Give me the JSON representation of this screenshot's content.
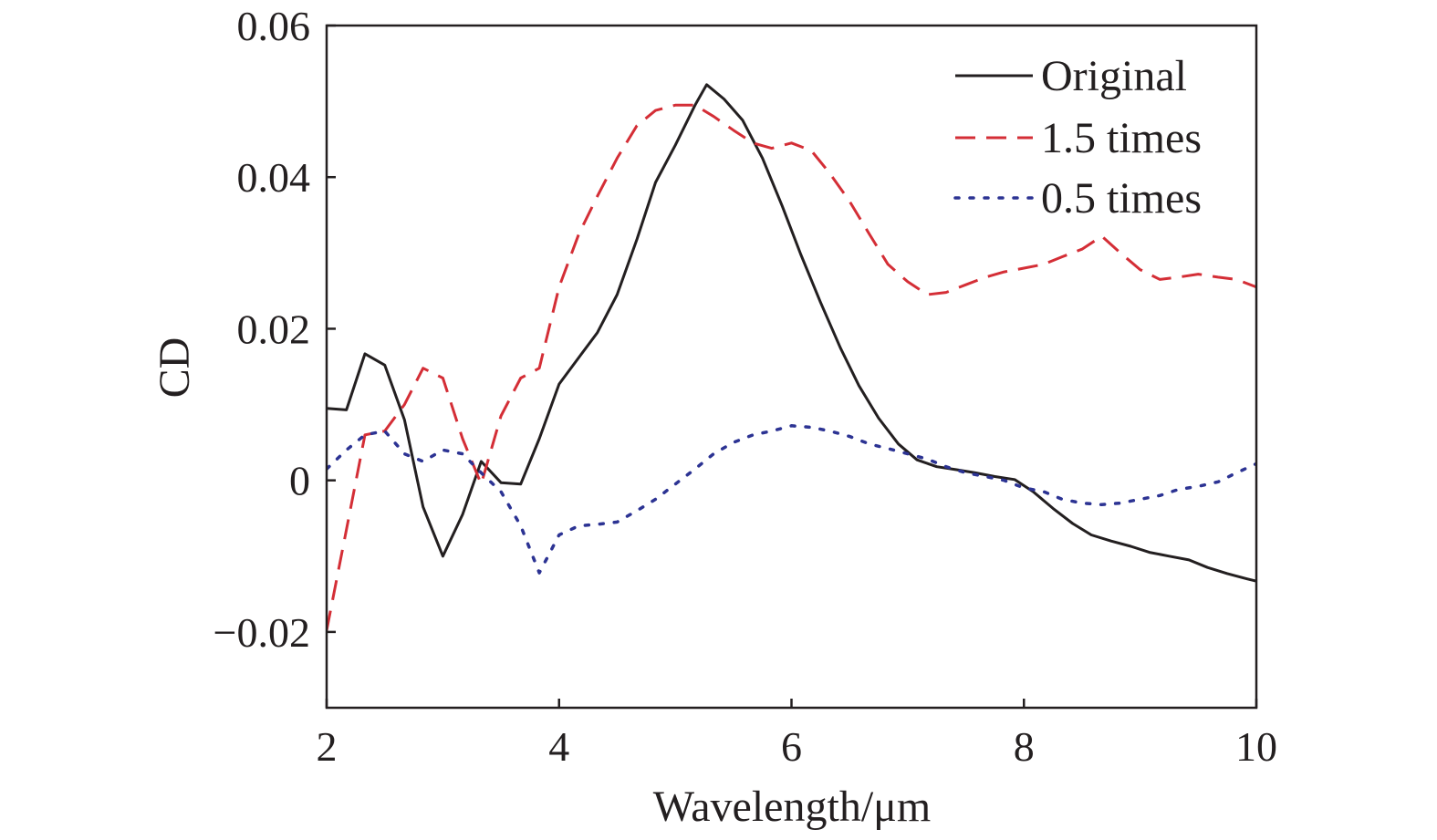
{
  "chart_data": {
    "type": "line",
    "title": "",
    "xlabel": "Wavelength/μm",
    "ylabel": "CD",
    "xlim": [
      2,
      10
    ],
    "ylim": [
      -0.03,
      0.06
    ],
    "x_ticks": [
      2,
      4,
      6,
      8,
      10
    ],
    "x_tick_labels": [
      "2",
      "4",
      "6",
      "8",
      "10"
    ],
    "y_ticks": [
      -0.02,
      0,
      0.02,
      0.04,
      0.06
    ],
    "y_tick_labels": [
      "−0.02",
      "0",
      "0.02",
      "0.04",
      "0.06"
    ],
    "grid": false,
    "legend_position": "top-right",
    "series": [
      {
        "name": "Original",
        "color": "#231f20",
        "line_style": "solid",
        "x": [
          2.0,
          2.17,
          2.33,
          2.5,
          2.67,
          2.83,
          3.0,
          3.17,
          3.33,
          3.5,
          3.67,
          3.83,
          4.0,
          4.17,
          4.33,
          4.5,
          4.67,
          4.83,
          5.0,
          5.17,
          5.27,
          5.42,
          5.58,
          5.75,
          5.92,
          6.08,
          6.25,
          6.42,
          6.58,
          6.75,
          6.92,
          7.08,
          7.25,
          7.42,
          7.58,
          7.75,
          7.92,
          8.08,
          8.25,
          8.42,
          8.58,
          8.75,
          8.92,
          9.08,
          9.25,
          9.42,
          9.58,
          9.75,
          9.92,
          10.0
        ],
        "y": [
          0.0095,
          0.0093,
          0.0167,
          0.0152,
          0.008,
          -0.0035,
          -0.01,
          -0.0045,
          0.0025,
          -0.0003,
          -0.0005,
          0.0055,
          0.0127,
          0.0162,
          0.0195,
          0.0245,
          0.0318,
          0.0393,
          0.0442,
          0.0495,
          0.0522,
          0.0503,
          0.0475,
          0.0425,
          0.0362,
          0.0298,
          0.0235,
          0.0175,
          0.0125,
          0.0082,
          0.0048,
          0.0027,
          0.0018,
          0.0014,
          0.001,
          0.0005,
          0.0001,
          -0.0015,
          -0.0037,
          -0.0057,
          -0.0072,
          -0.008,
          -0.0087,
          -0.0095,
          -0.01,
          -0.0105,
          -0.0115,
          -0.0123,
          -0.013,
          -0.0133
        ]
      },
      {
        "name": "1.5 times",
        "color": "#d42e36",
        "line_style": "dashed",
        "x": [
          2.0,
          2.17,
          2.33,
          2.5,
          2.67,
          2.83,
          3.0,
          3.17,
          3.33,
          3.5,
          3.67,
          3.83,
          4.0,
          4.17,
          4.33,
          4.5,
          4.67,
          4.83,
          5.0,
          5.17,
          5.33,
          5.5,
          5.67,
          5.83,
          6.0,
          6.17,
          6.33,
          6.5,
          6.67,
          6.83,
          7.0,
          7.17,
          7.33,
          7.5,
          7.67,
          7.83,
          8.0,
          8.17,
          8.33,
          8.5,
          8.67,
          8.83,
          9.0,
          9.17,
          9.33,
          9.5,
          9.67,
          9.83,
          10.0
        ],
        "y": [
          -0.0198,
          -0.0065,
          0.006,
          0.0065,
          0.01,
          0.0148,
          0.0135,
          0.0055,
          -0.0005,
          0.0085,
          0.0135,
          0.0148,
          0.0255,
          0.0325,
          0.0375,
          0.0425,
          0.0468,
          0.0488,
          0.0495,
          0.0495,
          0.048,
          0.0462,
          0.0445,
          0.0438,
          0.0445,
          0.0435,
          0.0405,
          0.0368,
          0.0325,
          0.0285,
          0.0262,
          0.0245,
          0.0248,
          0.0258,
          0.0268,
          0.0275,
          0.028,
          0.0285,
          0.0295,
          0.0305,
          0.0322,
          0.03,
          0.0278,
          0.0265,
          0.0268,
          0.0272,
          0.0268,
          0.0265,
          0.0255
        ]
      },
      {
        "name": "0.5 times",
        "color": "#2c3393",
        "line_style": "dotted",
        "x": [
          2.0,
          2.17,
          2.33,
          2.5,
          2.67,
          2.83,
          3.0,
          3.17,
          3.33,
          3.5,
          3.67,
          3.83,
          4.0,
          4.17,
          4.33,
          4.5,
          4.67,
          4.83,
          5.0,
          5.17,
          5.33,
          5.5,
          5.67,
          5.83,
          6.0,
          6.17,
          6.33,
          6.5,
          6.67,
          6.83,
          7.0,
          7.17,
          7.33,
          7.5,
          7.67,
          7.83,
          8.0,
          8.17,
          8.33,
          8.5,
          8.67,
          8.83,
          9.0,
          9.17,
          9.33,
          9.5,
          9.67,
          9.83,
          10.0
        ],
        "y": [
          0.0015,
          0.004,
          0.006,
          0.0065,
          0.0035,
          0.0025,
          0.004,
          0.0035,
          0.001,
          -0.0015,
          -0.006,
          -0.0122,
          -0.0072,
          -0.006,
          -0.0058,
          -0.0055,
          -0.004,
          -0.0025,
          -0.0005,
          0.0015,
          0.0035,
          0.005,
          0.006,
          0.0065,
          0.0072,
          0.007,
          0.0065,
          0.0058,
          0.0048,
          0.0042,
          0.0035,
          0.0028,
          0.0018,
          0.001,
          0.0005,
          0.0,
          -0.001,
          -0.0015,
          -0.0025,
          -0.003,
          -0.0032,
          -0.003,
          -0.0025,
          -0.002,
          -0.0012,
          -0.0008,
          -0.0002,
          0.001,
          0.0022
        ]
      }
    ]
  }
}
